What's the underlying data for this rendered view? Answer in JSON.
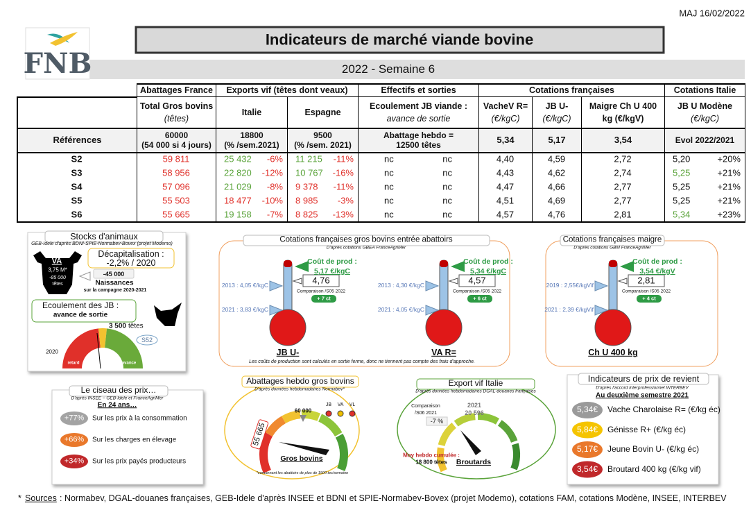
{
  "header": {
    "date": "MAJ 16/02/2022",
    "logo": "FNB",
    "title": "Indicateurs de marché viande bovine",
    "subtitle": "2022 - Semaine 6"
  },
  "table": {
    "groups": [
      "Abattages France",
      "Exports vif (têtes dont veaux)",
      "Effectifs et sorties",
      "Cotations françaises",
      "Cotations Italie"
    ],
    "columns": [
      {
        "name": "Total Gros bovins",
        "unit": "(têtes)"
      },
      {
        "name": "Italie"
      },
      {
        "name": "Espagne"
      },
      {
        "name": "Ecoulement JB viande :",
        "unit": "avance de sortie"
      },
      {
        "name": "VacheV R=",
        "unit": "(€/kgC)"
      },
      {
        "name": "JB U-",
        "unit": "(€/kgC)"
      },
      {
        "name": "Maigre Ch U 400",
        "unit": "kg (€/kgV)"
      },
      {
        "name": "JB U Modène",
        "unit": "(€/kgC)"
      }
    ],
    "reference_label": "Références",
    "references": [
      [
        "60000",
        "(54 000 si 4 jours)"
      ],
      [
        "18800",
        "(% /sem.2021)"
      ],
      [
        "9500",
        "(% /sem. 2021)"
      ],
      [
        "Abattage hebdo =",
        "12500 têtes"
      ],
      [
        "5,34"
      ],
      [
        "5,17"
      ],
      [
        "3,54"
      ],
      [
        "Evol 2022/2021"
      ]
    ],
    "rows": [
      {
        "label": "S2",
        "cells": [
          "59 811",
          "25 432",
          "-6%",
          "11 215",
          "-11%",
          "nc",
          "nc",
          "4,40",
          "4,59",
          "2,72",
          "5,20",
          "+20%"
        ],
        "colors": [
          "#e0302a",
          "#5aa33a",
          "#e0302a",
          "#5aa33a",
          "#e0302a",
          "#111",
          "#111",
          "#111",
          "#111",
          "#111",
          "#111",
          "#111"
        ]
      },
      {
        "label": "S3",
        "cells": [
          "58 956",
          "22 820",
          "-12%",
          "10 767",
          "-16%",
          "nc",
          "nc",
          "4,43",
          "4,62",
          "2,74",
          "5,25",
          "+21%"
        ],
        "colors": [
          "#e0302a",
          "#5aa33a",
          "#e0302a",
          "#5aa33a",
          "#e0302a",
          "#111",
          "#111",
          "#111",
          "#111",
          "#111",
          "#5aa33a",
          "#111"
        ]
      },
      {
        "label": "S4",
        "cells": [
          "57 096",
          "21 029",
          "-8%",
          "9 378",
          "-11%",
          "nc",
          "nc",
          "4,47",
          "4,66",
          "2,77",
          "5,25",
          "+21%"
        ],
        "colors": [
          "#e0302a",
          "#5aa33a",
          "#e0302a",
          "#e0302a",
          "#e0302a",
          "#111",
          "#111",
          "#111",
          "#111",
          "#111",
          "#111",
          "#111"
        ]
      },
      {
        "label": "S5",
        "cells": [
          "55 503",
          "18 477",
          "-10%",
          "8 985",
          "-3%",
          "nc",
          "nc",
          "4,51",
          "4,69",
          "2,77",
          "5,25",
          "+21%"
        ],
        "colors": [
          "#e0302a",
          "#e0302a",
          "#e0302a",
          "#e0302a",
          "#e0302a",
          "#111",
          "#111",
          "#111",
          "#111",
          "#111",
          "#111",
          "#111"
        ]
      },
      {
        "label": "S6",
        "cells": [
          "55 665",
          "19 158",
          "-7%",
          "8 825",
          "-13%",
          "nc",
          "nc",
          "4,57",
          "4,76",
          "2,81",
          "5,34",
          "+23%"
        ],
        "colors": [
          "#e0302a",
          "#5aa33a",
          "#e0302a",
          "#e0302a",
          "#e0302a",
          "#111",
          "#111",
          "#111",
          "#111",
          "#111",
          "#5aa33a",
          "#111"
        ]
      }
    ]
  },
  "stocks": {
    "title": "Stocks d'animaux",
    "source": "GEB-Idele d'après BDNI-SPIE-Normabev-Bovex (projet Modemo)",
    "cow_label": "VA",
    "cow_value": "3,75 M*",
    "cow_change": "-85 000",
    "cow_unit": "têtes",
    "decap_label": "Décapitalisation :",
    "decap_value": "-2,2% / 2020",
    "births_value": "-45 000",
    "births_label": "Naissances",
    "births_period": "sur la campagne 2020-2021",
    "jb_label": "Ecoulement des JB :",
    "jb_sub": "avance de sortie",
    "jb_value": "3 500",
    "jb_unit": "têtes",
    "week": "S52",
    "year": "2020",
    "left": "retard",
    "right": "avance"
  },
  "thermometers": {
    "title": "Cotations françaises gros bovins entrée abattoirs",
    "source": "D'après cotations GBEA FranceAgriMer",
    "note": "Les coûts de production sont calculés en sortie ferme, donc ne tiennent pas compte des frais d'approche.",
    "items": [
      {
        "cost_label": "Coût de prod :",
        "cost_value": "5,17 €/kgC",
        "current": "4,76",
        "comparison": "Comparaison /S05 2022",
        "delta": "+ 7 ct",
        "ref_high": "2013 : 4,05 €/kgC",
        "ref_low": "2021 : 3,83 €/kgC",
        "label": "JB U-"
      },
      {
        "cost_label": "Coût de prod :",
        "cost_value": "5,34 €/kgC",
        "current": "4,57",
        "comparison": "Comparaison /S05 2022",
        "delta": "+ 6 ct",
        "ref_high": "2013 : 4,30 €/kgC",
        "ref_low": "2021 : 4,05 €/kgC",
        "label": "VA R="
      }
    ]
  },
  "maigre": {
    "title": "Cotations françaises maigre",
    "source": "D'après cotations GBM FranceAgriMer",
    "item": {
      "cost_label": "Coût de prod :",
      "cost_value": "3,54 €/kgV",
      "current": "2,81",
      "comparison": "Comparaison /S05 2022",
      "delta": "+ 4 ct",
      "ref_high": "2019 : 2,55€/kgVif",
      "ref_low": "2021 : 2,39 €/kgVif",
      "label": "Ch U 400 kg"
    }
  },
  "ciseau": {
    "title": "Le ciseau des prix…",
    "source": "D'après INSEE – GEB-Idele et FranceAgriMer",
    "period": "En 24 ans…",
    "items": [
      {
        "badge": "+77%",
        "text": "Sur les prix à la consommation",
        "color": "#a3a3a3"
      },
      {
        "badge": "+66%",
        "text": "Sur les charges en élevage",
        "color": "#e9782b"
      },
      {
        "badge": "+34%",
        "text": "Sur les prix payés producteurs",
        "color": "#c0282a"
      }
    ]
  },
  "abattages": {
    "title": "Abattages hebdo gros bovins",
    "source": "D'après données hebdomadaires Normabev*",
    "target": "60 000",
    "legend": [
      "JB",
      "VA",
      "VL"
    ],
    "legend_colors": [
      "#e0302a",
      "#f0c000",
      "#e0302a"
    ],
    "value": "55 665",
    "label": "Gros bovins",
    "note": "*concernant les abattoirs de plus de 1500 tec/semaine"
  },
  "export": {
    "title": "Export vif Italie",
    "source": "D'après données hebdomadaires DGAL-douanes françaises",
    "comparison_label": "Comparaison",
    "comparison_period": "/S06 2021",
    "comparison_value": "-7 %",
    "ref_year": "2021",
    "ref_value": "20 596",
    "avg_label": "Moy hebdo cumulée :",
    "avg_value": "18 800 têtes",
    "label": "Broutards"
  },
  "revient": {
    "title": "Indicateurs de prix de revient",
    "source": "D'après l'accord interprofessionnel INTERBEV",
    "period": "Au deuxième semestre 2021",
    "items": [
      {
        "badge": "5,34€",
        "text": "Vache Charolaise R= (€/kg éc)",
        "color": "#9a9a9a"
      },
      {
        "badge": "5,84€",
        "text": "Génisse R+ (€/kg éc)",
        "color": "#f5c400"
      },
      {
        "badge": "5,17€",
        "text": "Jeune Bovin U- (€/kg éc)",
        "color": "#e9782b"
      },
      {
        "badge": "3,54€",
        "text": "Broutard 400 kg (€/kg vif)",
        "color": "#c0282a"
      }
    ]
  },
  "footer": {
    "mark": "*",
    "label": "Sources",
    "text": ": Normabev, DGAL-douanes françaises, GEB-Idele d'après INSEE et BDNI et SPIE-Normabev-Bovex (projet Modemo), cotations FAM, cotations Modène, INSEE, INTERBEV"
  }
}
